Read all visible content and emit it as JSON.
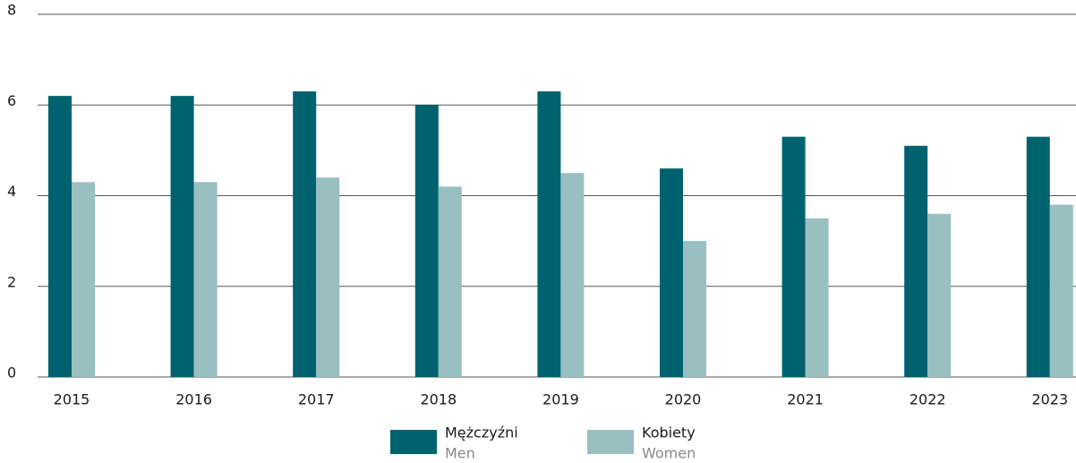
{
  "chart_data": {
    "type": "bar",
    "categories": [
      "2015",
      "2016",
      "2017",
      "2018",
      "2019",
      "2020",
      "2021",
      "2022",
      "2023"
    ],
    "series": [
      {
        "name": "Mężczyźni",
        "name_en": "Men",
        "color": "#00626e",
        "values": [
          6.2,
          6.2,
          6.3,
          6.0,
          6.3,
          4.6,
          5.3,
          5.1,
          5.3
        ]
      },
      {
        "name": "Kobiety",
        "name_en": "Women",
        "color": "#99bfc1",
        "values": [
          4.3,
          4.3,
          4.4,
          4.2,
          4.5,
          3.0,
          3.5,
          3.6,
          3.8
        ]
      }
    ],
    "ylim": [
      0,
      8
    ],
    "yticks": [
      0,
      2,
      4,
      6,
      8
    ],
    "grid": true,
    "legend": "bottom"
  }
}
